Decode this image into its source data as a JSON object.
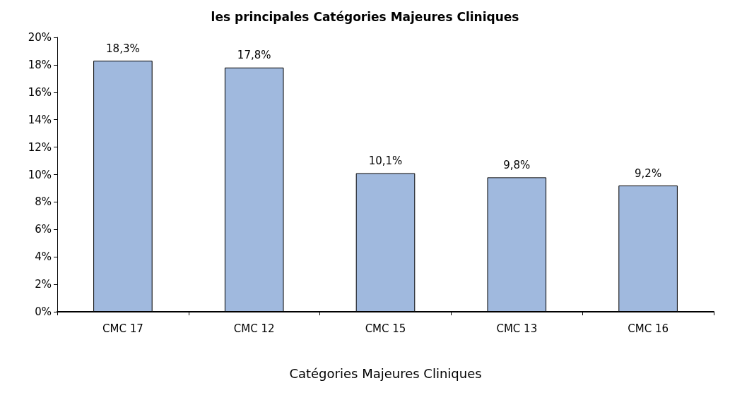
{
  "chart_data": {
    "type": "bar",
    "title": "les principales Catégories Majeures Cliniques",
    "xlabel": "Catégories Majeures Cliniques",
    "categories": [
      "CMC 17",
      "CMC 12",
      "CMC 15",
      "CMC 13",
      "CMC 16"
    ],
    "values": [
      18.3,
      17.8,
      10.1,
      9.8,
      9.2
    ],
    "value_labels": [
      "18,3%",
      "17,8%",
      "10,1%",
      "9,8%",
      "9,2%"
    ],
    "color": "#a0b9de",
    "ylim": [
      0,
      20
    ],
    "yticks": [
      {
        "value": 0,
        "label": "0%"
      },
      {
        "value": 2,
        "label": "2%"
      },
      {
        "value": 4,
        "label": "4%"
      },
      {
        "value": 6,
        "label": "6%"
      },
      {
        "value": 8,
        "label": "8%"
      },
      {
        "value": 10,
        "label": "10%"
      },
      {
        "value": 12,
        "label": "12%"
      },
      {
        "value": 14,
        "label": "14%"
      },
      {
        "value": 16,
        "label": "16%"
      },
      {
        "value": 18,
        "label": "18%"
      },
      {
        "value": 20,
        "label": "20%"
      }
    ],
    "grid": false
  }
}
